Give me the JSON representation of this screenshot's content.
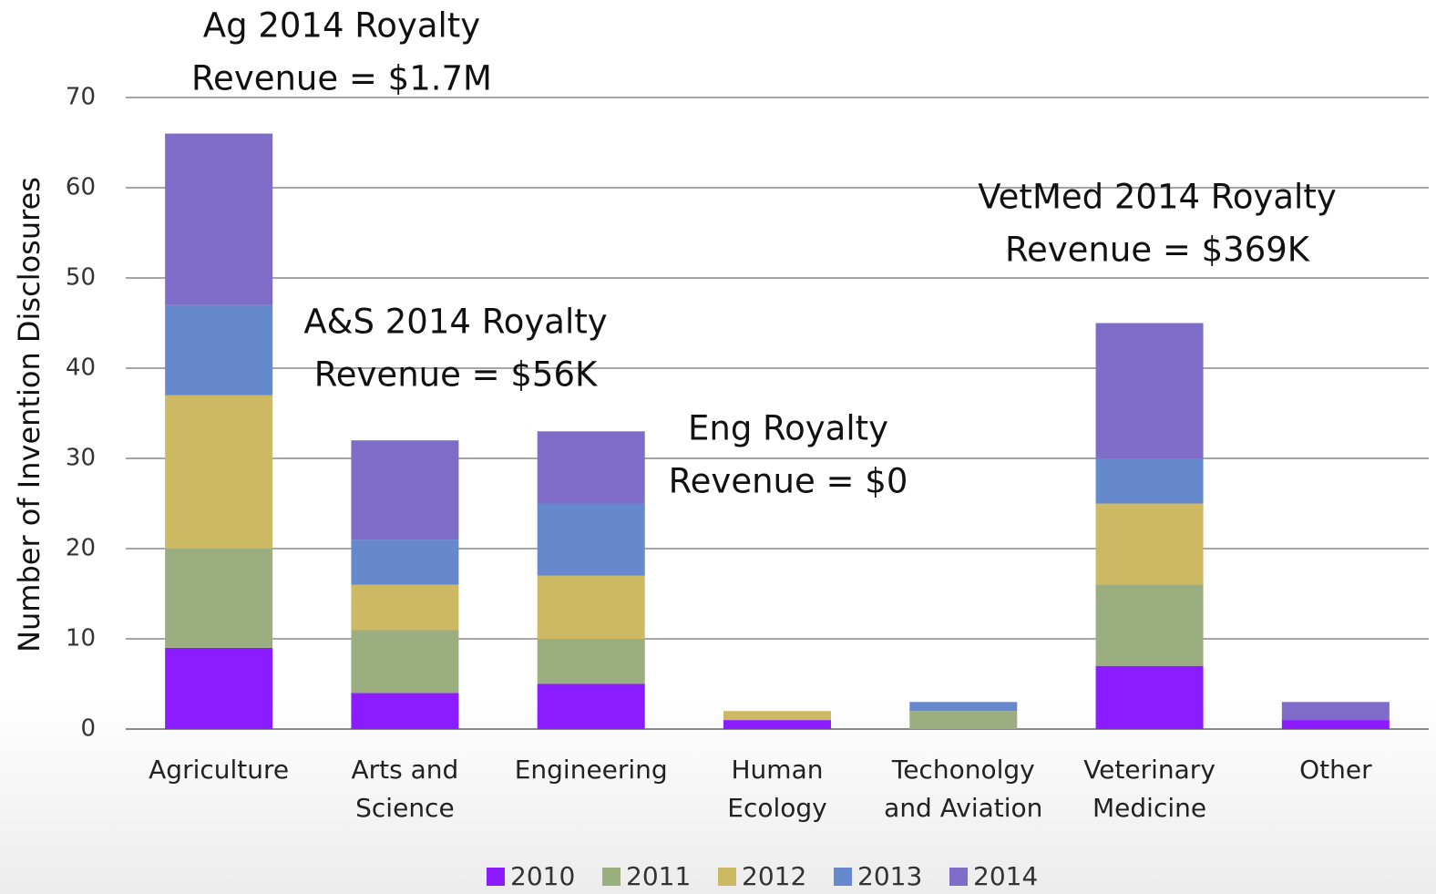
{
  "chart_data": {
    "type": "stacked_bar",
    "y_label": "Number of Invention Disclosures",
    "categories": [
      "Agriculture",
      "Arts and\nScience",
      "Engineering",
      "Human\nEcology",
      "Techonolgy\nand Aviation",
      "Veterinary\nMedicine",
      "Other"
    ],
    "series": [
      {
        "name": "2010",
        "color": "#8b1cff",
        "values": [
          9,
          4,
          5,
          1,
          0,
          7,
          1
        ]
      },
      {
        "name": "2011",
        "color": "#9bae7f",
        "values": [
          11,
          7,
          5,
          0,
          2,
          9,
          0
        ]
      },
      {
        "name": "2012",
        "color": "#cdb864",
        "values": [
          17,
          5,
          7,
          1,
          0,
          9,
          0
        ]
      },
      {
        "name": "2013",
        "color": "#6688cc",
        "values": [
          10,
          5,
          8,
          0,
          1,
          5,
          0
        ]
      },
      {
        "name": "2014",
        "color": "#7f6cc8",
        "values": [
          19,
          11,
          8,
          0,
          0,
          15,
          2
        ]
      }
    ],
    "ylim": [
      0,
      70
    ],
    "yticks": [
      0,
      10,
      20,
      30,
      40,
      50,
      60,
      70
    ],
    "grid": true,
    "legend": "bottom",
    "annotations": [
      {
        "lines": [
          "Ag 2014 Royalty",
          "Revenue = $1.7M"
        ]
      },
      {
        "lines": [
          "A&S 2014 Royalty",
          "Revenue = $56K"
        ]
      },
      {
        "lines": [
          "Eng Royalty",
          "Revenue = $0"
        ]
      },
      {
        "lines": [
          "VetMed 2014 Royalty",
          "Revenue = $369K"
        ]
      }
    ]
  }
}
